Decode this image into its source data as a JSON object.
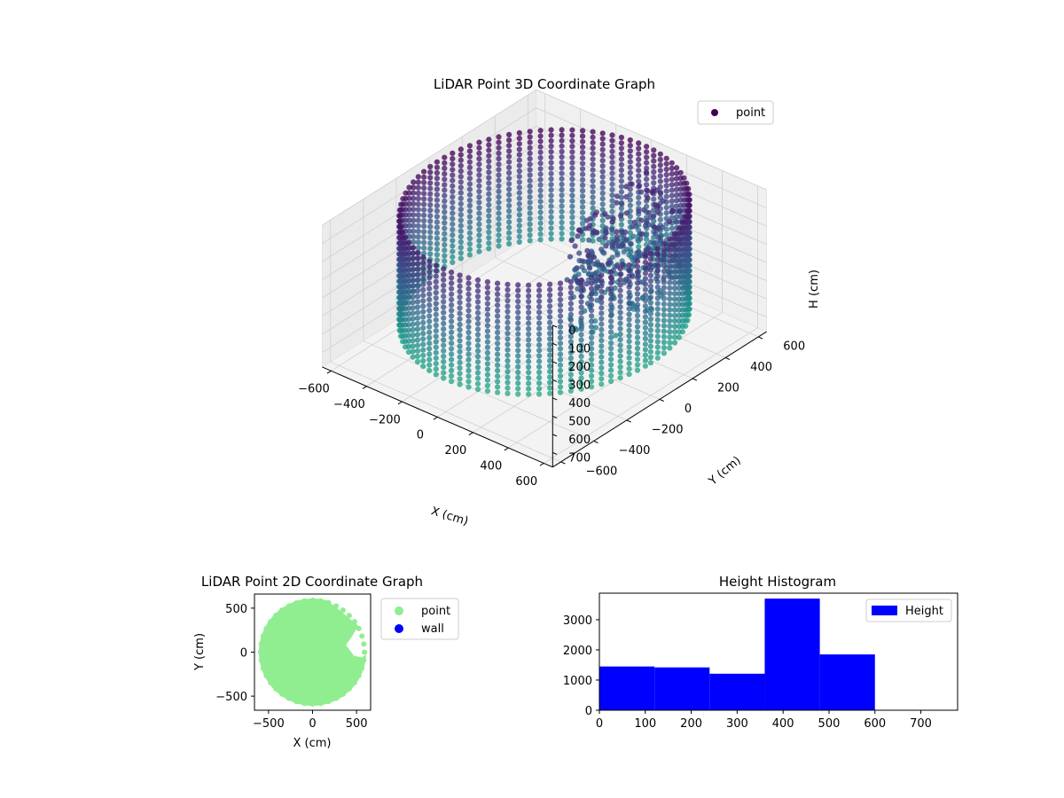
{
  "chart_data": [
    {
      "type": "scatter3d",
      "title": "LiDAR Point 3D Coordinate Graph",
      "xlabel": "X (cm)",
      "ylabel": "Y (cm)",
      "zlabel": "H (cm)",
      "x_ticks": [
        -600,
        -400,
        -200,
        0,
        200,
        400,
        600
      ],
      "y_ticks": [
        -600,
        -400,
        -200,
        0,
        200,
        400,
        600
      ],
      "z_ticks": [
        0,
        100,
        200,
        300,
        400,
        500,
        600,
        700
      ],
      "xlim": [
        -650,
        650
      ],
      "ylim": [
        -650,
        650
      ],
      "zlim": [
        0,
        780
      ],
      "z_inverted": true,
      "legend": {
        "position": "top-right",
        "entries": [
          {
            "label": "point",
            "color": "#440154"
          }
        ]
      },
      "colormap": "viridis",
      "grid": true,
      "wall_radius": 600,
      "wall_height": [
        0,
        600
      ]
    },
    {
      "type": "scatter",
      "title": "LiDAR Point 2D Coordinate Graph",
      "xlabel": "X (cm)",
      "ylabel": "Y (cm)",
      "x_ticks": [
        -500,
        0,
        500
      ],
      "y_ticks": [
        -500,
        0,
        500
      ],
      "xlim": [
        -660,
        660
      ],
      "ylim": [
        -660,
        660
      ],
      "series": [
        {
          "name": "point",
          "color": "#90ee90"
        },
        {
          "name": "wall",
          "color": "#0000ff"
        }
      ],
      "legend": {
        "position": "outside-right"
      },
      "point_region_radius": 610
    },
    {
      "type": "bar",
      "title": "Height Histogram",
      "bin_edges": [
        0,
        120,
        240,
        360,
        480,
        600
      ],
      "values": [
        1450,
        1420,
        1210,
        3700,
        1850
      ],
      "x_ticks": [
        0,
        100,
        200,
        300,
        400,
        500,
        600,
        700
      ],
      "y_ticks": [
        0,
        1000,
        2000,
        3000
      ],
      "xlim": [
        0,
        780
      ],
      "ylim": [
        0,
        3880
      ],
      "series": [
        {
          "name": "Height",
          "color": "#0000ff"
        }
      ],
      "legend": {
        "position": "top-right"
      }
    }
  ]
}
